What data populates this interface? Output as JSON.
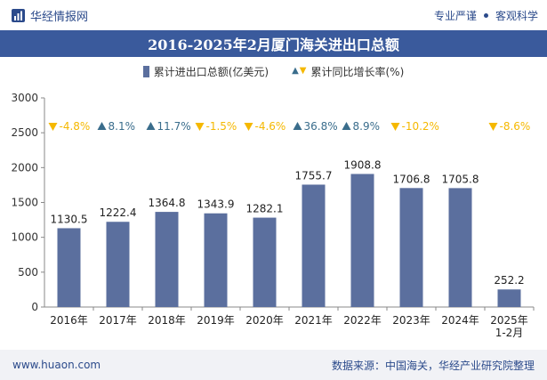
{
  "header": {
    "brand": "华经情报网",
    "tags": [
      "专业严谨",
      "客观科学"
    ]
  },
  "title": "2016-2025年2月厦门海关进出口总额",
  "legend": {
    "bar_label": "累计进出口总额(亿美元)",
    "line_label": "累计同比增长率(%)"
  },
  "footer": {
    "website": "www.huaon.com",
    "source": "数据来源：中国海关，华经产业研究院整理"
  },
  "colors": {
    "bar": "#5b6f9e",
    "title_bg": "#3a5a9c",
    "up": "#3a6d8c",
    "down": "#f5b800",
    "brand": "#2b4a8b"
  },
  "chart_data": {
    "type": "bar",
    "categories": [
      "2016年",
      "2017年",
      "2018年",
      "2019年",
      "2020年",
      "2021年",
      "2022年",
      "2023年",
      "2024年",
      "2025年\n1-2月"
    ],
    "series": [
      {
        "name": "累计进出口总额(亿美元)",
        "values": [
          1130.5,
          1222.4,
          1364.8,
          1343.9,
          1282.1,
          1755.7,
          1908.8,
          1706.8,
          1705.8,
          252.2
        ]
      }
    ],
    "growth": {
      "name": "累计同比增长率(%)",
      "values": [
        -4.8,
        8.1,
        11.7,
        -1.5,
        -4.6,
        36.8,
        8.9,
        -10.2,
        null,
        -8.6
      ],
      "labels": [
        "-4.8%",
        "8.1%",
        "11.7%",
        "-1.5%",
        "-4.6%",
        "36.8%",
        "8.9%",
        "-10.2%",
        "",
        "-8.6%"
      ]
    },
    "ylim": [
      0,
      3000
    ],
    "yticks": [
      0,
      500,
      1000,
      1500,
      2000,
      2500,
      3000
    ],
    "data_labels": [
      "1130.5",
      "1222.4",
      "1364.8",
      "1343.9",
      "1282.1",
      "1755.7",
      "1908.8",
      "1706.8",
      "1705.8",
      "252.2"
    ],
    "grid": false,
    "legend_position": "top"
  }
}
